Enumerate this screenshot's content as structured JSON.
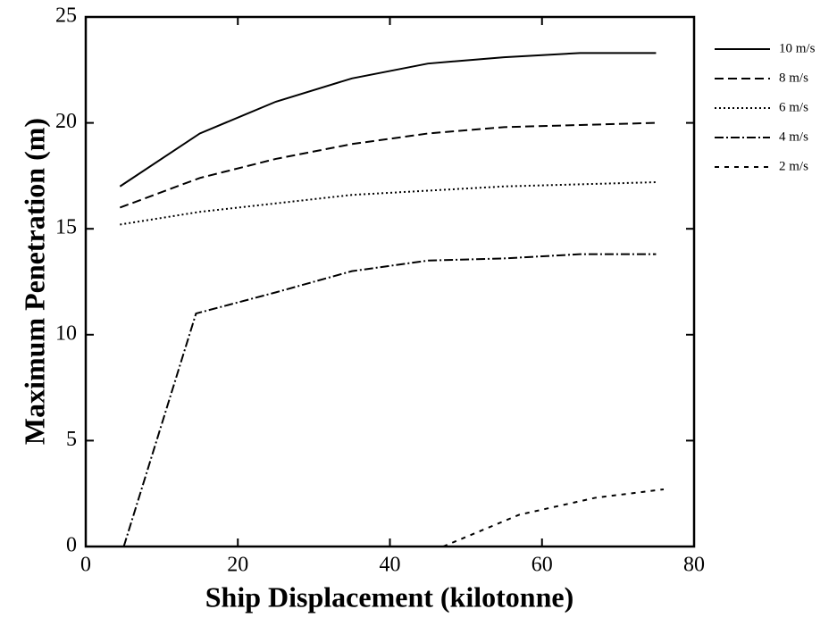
{
  "chart_data": {
    "type": "line",
    "xlabel": "Ship Displacement (kilotonne)",
    "ylabel": "Maximum Penetration (m)",
    "xlim": [
      0,
      80
    ],
    "xticks": [
      0,
      20,
      40,
      60,
      80
    ],
    "ylim": [
      0,
      25
    ],
    "yticks": [
      0,
      5,
      10,
      15,
      20,
      25
    ],
    "legend": "right",
    "series": [
      {
        "name": "10 m/s",
        "color": "#000000",
        "dash": "none",
        "x": [
          4.5,
          15,
          25,
          35,
          45,
          55,
          65,
          75
        ],
        "values": [
          17,
          19.5,
          21,
          22.1,
          22.8,
          23.1,
          23.3,
          23.3
        ]
      },
      {
        "name": "8 m/s",
        "color": "#000000",
        "dash": "10,5",
        "x": [
          4.5,
          15,
          25,
          35,
          45,
          55,
          65,
          75
        ],
        "values": [
          16,
          17.4,
          18.3,
          19,
          19.5,
          19.8,
          19.9,
          20
        ]
      },
      {
        "name": "6 m/s",
        "color": "#000000",
        "dash": "2,3",
        "x": [
          4.5,
          15,
          25,
          35,
          45,
          55,
          65,
          75
        ],
        "values": [
          15.2,
          15.8,
          16.2,
          16.6,
          16.8,
          17,
          17.1,
          17.2
        ]
      },
      {
        "name": "4 m/s",
        "color": "#000000",
        "dash": "10,3,2,3",
        "x": [
          5,
          14.5,
          25,
          35,
          45,
          55,
          65,
          75
        ],
        "values": [
          0,
          11,
          12,
          13,
          13.5,
          13.6,
          13.8,
          13.8
        ]
      },
      {
        "name": "2 m/s",
        "color": "#000000",
        "dash": "5,6",
        "x": [
          47,
          57,
          67,
          76
        ],
        "values": [
          0,
          1.5,
          2.3,
          2.7
        ]
      }
    ]
  }
}
